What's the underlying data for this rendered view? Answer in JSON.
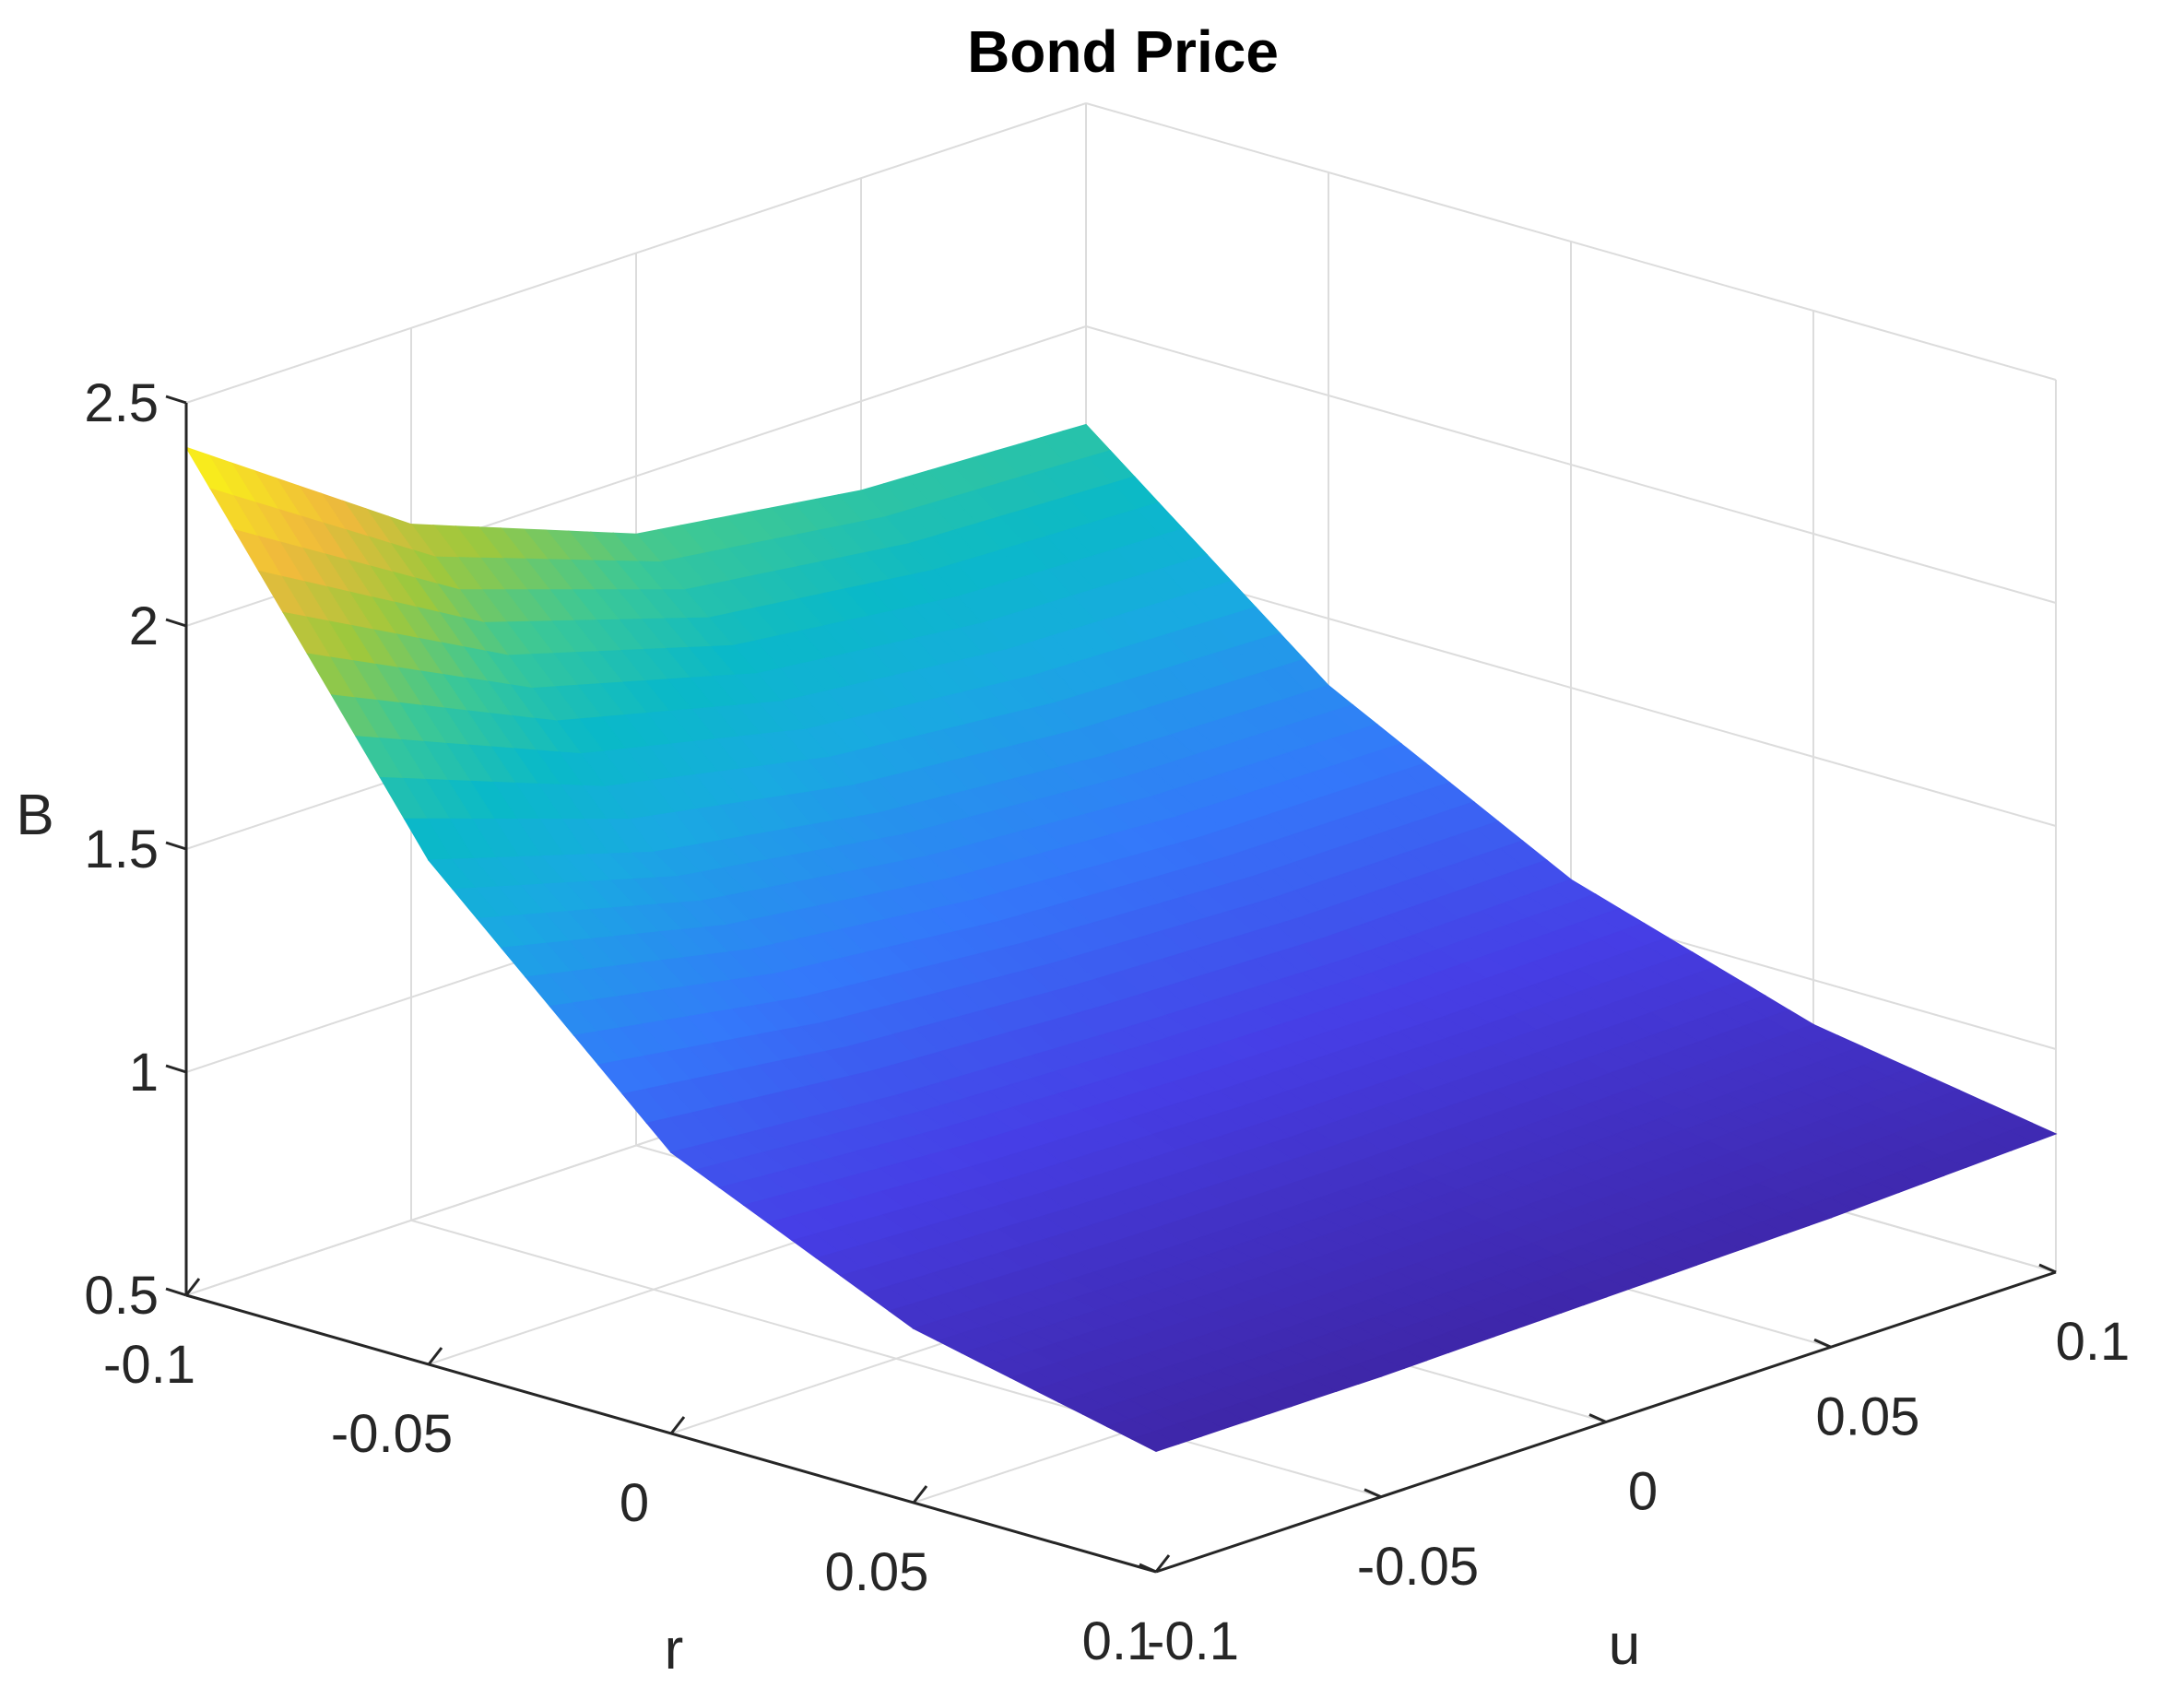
{
  "chart_data": {
    "type": "surface",
    "title": "Bond Price",
    "xlabel": "r",
    "ylabel": "u",
    "zlabel": "B",
    "x_ticks": [
      "-0.1",
      "-0.05",
      "0",
      "0.05",
      "0.1"
    ],
    "y_ticks": [
      "-0.1",
      "-0.05",
      "0",
      "0.05",
      "0.1"
    ],
    "z_ticks": [
      "0.5",
      "1",
      "1.5",
      "2",
      "2.5"
    ],
    "xlim": [
      -0.1,
      0.1
    ],
    "ylim": [
      -0.1,
      0.1
    ],
    "zlim": [
      0.5,
      2.5
    ],
    "grid": true,
    "colormap": "parula",
    "surface": {
      "x": [
        -0.1,
        -0.05,
        0,
        0.05,
        0.1
      ],
      "y": [
        -0.1,
        -0.05,
        0,
        0.05,
        0.1
      ],
      "z": [
        [
          2.4,
          1.63,
          1.13,
          0.89,
          0.77
        ],
        [
          2.06,
          1.48,
          1.09,
          0.88,
          0.77
        ],
        [
          1.87,
          1.4,
          1.07,
          0.88,
          0.78
        ],
        [
          1.8,
          1.36,
          1.06,
          0.89,
          0.79
        ],
        [
          1.78,
          1.35,
          1.07,
          0.9,
          0.81
        ]
      ]
    }
  }
}
